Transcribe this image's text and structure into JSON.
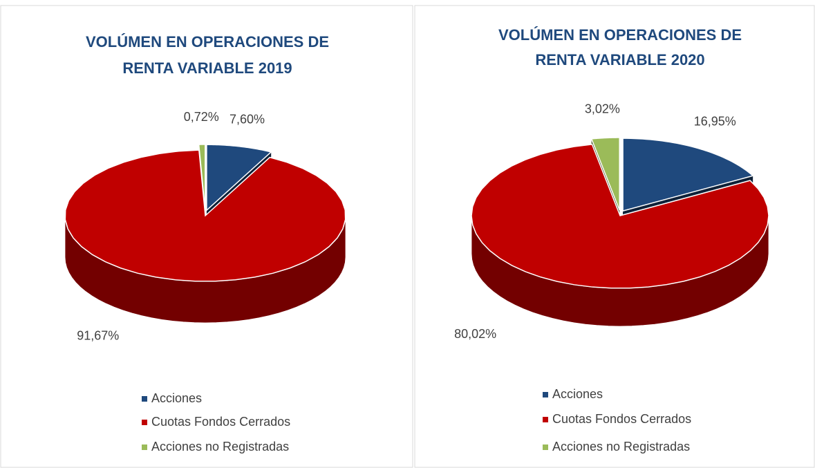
{
  "chart_data": [
    {
      "type": "pie",
      "title": [
        "VOLÚMEN EN OPERACIONES DE",
        "RENTA VARIABLE  2019"
      ],
      "categories": [
        "Acciones",
        "Cuotas Fondos Cerrados",
        "Acciones no Registradas"
      ],
      "values": [
        7.6,
        91.67,
        0.72
      ],
      "value_labels": [
        "7,60%",
        "91,67%",
        "0,72%"
      ],
      "colors": [
        "#1f497d",
        "#c00000",
        "#9bbb59"
      ]
    },
    {
      "type": "pie",
      "title": [
        "VOLÚMEN EN OPERACIONES DE",
        "RENTA VARIABLE  2020"
      ],
      "categories": [
        "Acciones",
        "Cuotas Fondos Cerrados",
        "Acciones no Registradas"
      ],
      "values": [
        16.95,
        80.02,
        3.02
      ],
      "value_labels": [
        "16,95%",
        "80,02%",
        "3,02%"
      ],
      "colors": [
        "#1f497d",
        "#c00000",
        "#9bbb59"
      ]
    }
  ]
}
